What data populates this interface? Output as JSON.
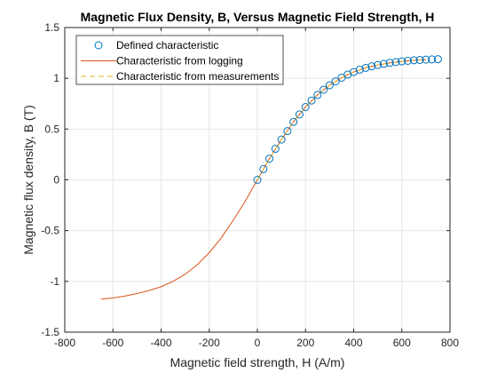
{
  "chart_data": {
    "type": "line",
    "title": "Magnetic Flux Density, B, Versus Magnetic Field Strength, H",
    "xlabel": "Magnetic field strength, H (A/m)",
    "ylabel": "Magnetic flux density, B (T)",
    "xlim": [
      -800,
      800
    ],
    "ylim": [
      -1.5,
      1.5
    ],
    "xticks": [
      -800,
      -600,
      -400,
      -200,
      0,
      200,
      400,
      600,
      800
    ],
    "yticks": [
      -1.5,
      -1,
      -0.5,
      0,
      0.5,
      1,
      1.5
    ],
    "xtick_labels": [
      "-800",
      "-600",
      "-400",
      "-200",
      "0",
      "200",
      "400",
      "600",
      "800"
    ],
    "ytick_labels": [
      "-1.5",
      "-1",
      "-0.5",
      "0",
      "0.5",
      "1",
      "1.5"
    ],
    "grid": true,
    "legend_position": "top-left",
    "series": [
      {
        "name": "Defined characteristic",
        "style": "markers",
        "color": "#0072BD",
        "x": [
          0,
          25,
          50,
          75,
          100,
          125,
          150,
          175,
          200,
          225,
          250,
          275,
          300,
          325,
          350,
          375,
          400,
          425,
          450,
          475,
          500,
          525,
          550,
          575,
          600,
          625,
          650,
          675,
          700,
          725,
          750
        ],
        "y": [
          0,
          0.106,
          0.209,
          0.306,
          0.397,
          0.48,
          0.571,
          0.644,
          0.717,
          0.781,
          0.836,
          0.888,
          0.931,
          0.97,
          1.006,
          1.037,
          1.062,
          1.085,
          1.103,
          1.118,
          1.131,
          1.142,
          1.152,
          1.16,
          1.167,
          1.172,
          1.177,
          1.181,
          1.184,
          1.186,
          1.188
        ]
      },
      {
        "name": "Characteristic from logging",
        "style": "solid",
        "color": "#D95319",
        "x": [
          -650,
          -600,
          -550,
          -500,
          -450,
          -400,
          -350,
          -300,
          -250,
          -200,
          -150,
          -100,
          -50,
          0,
          50,
          100,
          150,
          200,
          250,
          300,
          350,
          400,
          450,
          500,
          550,
          600,
          650,
          700
        ],
        "y": [
          -1.175,
          -1.163,
          -1.145,
          -1.12,
          -1.09,
          -1.053,
          -0.999,
          -0.93,
          -0.836,
          -0.717,
          -0.571,
          -0.397,
          -0.209,
          0,
          0.209,
          0.397,
          0.571,
          0.717,
          0.836,
          0.931,
          1.006,
          1.062,
          1.103,
          1.131,
          1.152,
          1.167,
          1.177,
          1.184
        ]
      },
      {
        "name": "Characteristic from measurements",
        "style": "dashed",
        "color": "#EDB120",
        "x": [
          0,
          50,
          100,
          150,
          200,
          250,
          300,
          350,
          400,
          450,
          500,
          550,
          600,
          650,
          700
        ],
        "y": [
          0,
          0.209,
          0.397,
          0.571,
          0.717,
          0.836,
          0.931,
          1.006,
          1.062,
          1.103,
          1.131,
          1.152,
          1.167,
          1.177,
          1.184
        ]
      }
    ]
  }
}
